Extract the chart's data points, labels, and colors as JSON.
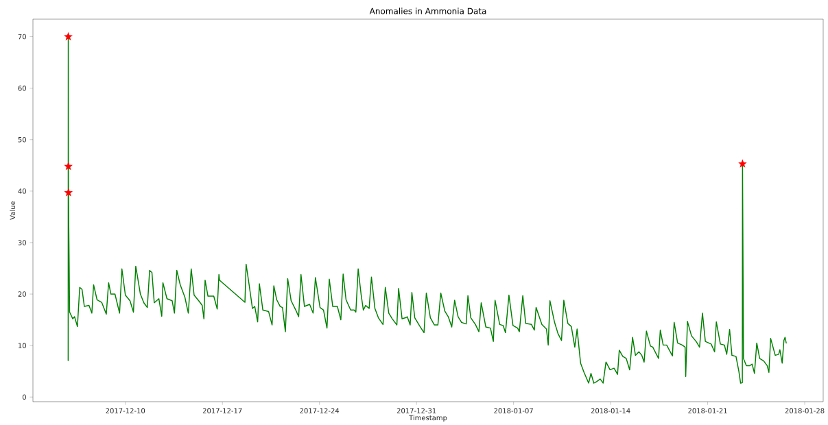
{
  "chart_data": {
    "type": "line",
    "title": "Anomalies in Ammonia Data",
    "xlabel": "Timestamp",
    "ylabel": "Value",
    "xlim": [
      "2017-12-03T08:00",
      "2018-01-29T08:00"
    ],
    "xticks": [
      "2017-12-10",
      "2017-12-17",
      "2017-12-24",
      "2017-12-31",
      "2018-01-07",
      "2018-01-14",
      "2018-01-21",
      "2018-01-28"
    ],
    "ylim": [
      -0.9,
      73.4
    ],
    "yticks": [
      0,
      10,
      20,
      30,
      40,
      50,
      60,
      70
    ],
    "series": [
      {
        "color": "#008000",
        "x": [
          "2017-12-05T21:00",
          "2017-12-05T21:10",
          "2017-12-05T21:20",
          "2017-12-05T21:30",
          "2017-12-05T23:30",
          "2017-12-06T05:00",
          "2017-12-06T08:00",
          "2017-12-06T13:00",
          "2017-12-06T17:00",
          "2017-12-06T21:00",
          "2017-12-07T01:00",
          "2017-12-07T09:00",
          "2017-12-07T14:00",
          "2017-12-07T17:00",
          "2017-12-07T23:00",
          "2017-12-08T07:00",
          "2017-12-08T15:00",
          "2017-12-08T19:00",
          "2017-12-08T23:00",
          "2017-12-09T06:00",
          "2017-12-09T14:00",
          "2017-12-09T18:00",
          "2017-12-10T00:00",
          "2017-12-10T08:00",
          "2017-12-10T14:00",
          "2017-12-10T18:00",
          "2017-12-11T02:00",
          "2017-12-11T08:00",
          "2017-12-11T14:00",
          "2017-12-11T18:00",
          "2017-12-11T22:00",
          "2017-12-12T02:00",
          "2017-12-12T10:00",
          "2017-12-12T15:00",
          "2017-12-12T17:00",
          "2017-12-13T00:00",
          "2017-12-13T09:00",
          "2017-12-13T13:00",
          "2017-12-13T17:00",
          "2017-12-13T23:00",
          "2017-12-14T07:00",
          "2017-12-14T13:00",
          "2017-12-14T18:00",
          "2017-12-14T23:00",
          "2017-12-15T07:00",
          "2017-12-15T13:00",
          "2017-12-15T16:00",
          "2017-12-15T18:00",
          "2017-12-15T23:00",
          "2017-12-16T09:00",
          "2017-12-16T15:00",
          "2017-12-16T18:00",
          "2017-12-16T19:00",
          "2017-12-18T15:00",
          "2017-12-18T17:00",
          "2017-12-18T22:00",
          "2017-12-19T04:00",
          "2017-12-19T08:00",
          "2017-12-19T13:00",
          "2017-12-19T16:00",
          "2017-12-19T22:00",
          "2017-12-20T08:00",
          "2017-12-20T14:00",
          "2017-12-20T17:00",
          "2017-12-20T22:00",
          "2017-12-21T04:00",
          "2017-12-21T08:00",
          "2017-12-21T13:00",
          "2017-12-21T17:00",
          "2017-12-21T23:00",
          "2017-12-22T07:00",
          "2017-12-22T12:00",
          "2017-12-22T16:00",
          "2017-12-22T22:00",
          "2017-12-23T07:00",
          "2017-12-23T13:00",
          "2017-12-23T17:00",
          "2017-12-24T01:00",
          "2017-12-24T07:00",
          "2017-12-24T13:00",
          "2017-12-24T17:00",
          "2017-12-24T23:00",
          "2017-12-25T07:00",
          "2017-12-25T13:00",
          "2017-12-25T17:00",
          "2017-12-25T22:00",
          "2017-12-26T06:00",
          "2017-12-26T12:00",
          "2017-12-26T15:00",
          "2017-12-26T19:00",
          "2017-12-27T00:00",
          "2017-12-27T04:00",
          "2017-12-27T08:00",
          "2017-12-27T14:00",
          "2017-12-27T18:00",
          "2017-12-28T00:00",
          "2017-12-28T06:00",
          "2017-12-28T14:00",
          "2017-12-28T18:00",
          "2017-12-29T00:00",
          "2017-12-29T06:00",
          "2017-12-29T14:00",
          "2017-12-29T17:00",
          "2017-12-29T23:00",
          "2017-12-30T05:00",
          "2017-12-30T08:00",
          "2017-12-30T13:00",
          "2017-12-30T16:00",
          "2017-12-30T21:00",
          "2017-12-31T05:00",
          "2017-12-31T13:00",
          "2017-12-31T17:00",
          "2018-01-01T00:00",
          "2018-01-01T07:00",
          "2018-01-01T13:00",
          "2018-01-01T18:00",
          "2018-01-02T01:00",
          "2018-01-02T07:00",
          "2018-01-02T13:00",
          "2018-01-02T18:00",
          "2018-01-03T00:00",
          "2018-01-03T06:00",
          "2018-01-03T14:00",
          "2018-01-03T17:00",
          "2018-01-03T22:00",
          "2018-01-04T06:00",
          "2018-01-04T12:00",
          "2018-01-04T16:00",
          "2018-01-05T00:00",
          "2018-01-05T08:00",
          "2018-01-05T13:00",
          "2018-01-05T16:00",
          "2018-01-06T00:00",
          "2018-01-06T06:00",
          "2018-01-06T10:00",
          "2018-01-06T16:00",
          "2018-01-06T23:00",
          "2018-01-07T07:00",
          "2018-01-07T10:00",
          "2018-01-07T16:00",
          "2018-01-07T21:00",
          "2018-01-08T07:00",
          "2018-01-08T12:00",
          "2018-01-08T15:00",
          "2018-01-09T01:00",
          "2018-01-09T09:00",
          "2018-01-09T12:00",
          "2018-01-09T15:00",
          "2018-01-09T23:00",
          "2018-01-10T05:00",
          "2018-01-10T11:00",
          "2018-01-10T15:00",
          "2018-01-10T22:00",
          "2018-01-11T04:00",
          "2018-01-11T10:00",
          "2018-01-11T14:00",
          "2018-01-11T20:00",
          "2018-01-12T02:00",
          "2018-01-12T10:00",
          "2018-01-12T14:00",
          "2018-01-12T19:00",
          "2018-01-13T00:00",
          "2018-01-13T06:00",
          "2018-01-13T11:00",
          "2018-01-13T16:00",
          "2018-01-13T23:00",
          "2018-01-14T06:00",
          "2018-01-14T12:00",
          "2018-01-14T15:00",
          "2018-01-14T21:00",
          "2018-01-15T03:00",
          "2018-01-15T09:00",
          "2018-01-15T14:00",
          "2018-01-15T19:00",
          "2018-01-16T01:00",
          "2018-01-16T06:00",
          "2018-01-16T10:00",
          "2018-01-16T14:00",
          "2018-01-16T21:00",
          "2018-01-17T01:00",
          "2018-01-17T05:00",
          "2018-01-17T11:00",
          "2018-01-17T14:00",
          "2018-01-17T19:00",
          "2018-01-18T01:00",
          "2018-01-18T11:00",
          "2018-01-18T14:00",
          "2018-01-18T20:00",
          "2018-01-19T04:00",
          "2018-01-19T09:00",
          "2018-01-19T10:00",
          "2018-01-19T13:00",
          "2018-01-19T20:00",
          "2018-01-20T04:00",
          "2018-01-20T10:00",
          "2018-01-20T15:00",
          "2018-01-20T20:00",
          "2018-01-21T06:00",
          "2018-01-21T12:00",
          "2018-01-21T15:00",
          "2018-01-21T22:00",
          "2018-01-22T05:00",
          "2018-01-22T09:00",
          "2018-01-22T14:00",
          "2018-01-22T18:00",
          "2018-01-23T01:00",
          "2018-01-23T06:00",
          "2018-01-23T09:00",
          "2018-01-23T12:00",
          "2018-01-23T12:20",
          "2018-01-23T14:00",
          "2018-01-23T19:00",
          "2018-01-24T01:00",
          "2018-01-24T05:00",
          "2018-01-24T09:00",
          "2018-01-24T13:00",
          "2018-01-24T18:00",
          "2018-01-25T01:00",
          "2018-01-25T07:00",
          "2018-01-25T10:00",
          "2018-01-25T13:00",
          "2018-01-25T21:00",
          "2018-01-26T03:00",
          "2018-01-26T05:00",
          "2018-01-26T09:00",
          "2018-01-26T12:00",
          "2018-01-26T14:00",
          "2018-01-26T16:00"
        ],
        "values": [
          7.1,
          70,
          44.8,
          39.7,
          16.5,
          15.2,
          15.6,
          13.7,
          21.3,
          20.9,
          17.6,
          17.8,
          16.3,
          21.8,
          18.9,
          18.4,
          16.1,
          22.2,
          20.0,
          20.0,
          16.3,
          24.9,
          19.8,
          18.7,
          16.5,
          25.4,
          20.0,
          18.3,
          17.4,
          24.6,
          24.2,
          18.3,
          19.1,
          15.7,
          22.2,
          19.1,
          18.7,
          16.3,
          24.6,
          21.8,
          19.4,
          16.3,
          24.9,
          19.8,
          18.7,
          17.8,
          15.2,
          22.7,
          19.6,
          19.6,
          17.1,
          23.8,
          22.7,
          18.4,
          25.8,
          22.0,
          17.2,
          17.6,
          14.6,
          22.0,
          16.9,
          16.6,
          14.0,
          21.6,
          18.9,
          17.6,
          17.4,
          12.7,
          23.0,
          18.7,
          16.9,
          15.6,
          23.8,
          17.6,
          18.0,
          16.3,
          23.2,
          17.4,
          16.9,
          13.4,
          22.9,
          17.6,
          17.6,
          15.0,
          23.9,
          18.9,
          16.9,
          16.9,
          16.5,
          24.9,
          20.0,
          16.9,
          17.8,
          17.2,
          23.3,
          17.2,
          15.4,
          14.1,
          21.3,
          16.3,
          15.2,
          14.0,
          21.1,
          15.2,
          15.4,
          15.6,
          14.0,
          20.3,
          15.4,
          13.9,
          12.5,
          20.2,
          15.4,
          14.0,
          14.0,
          20.2,
          16.7,
          15.6,
          13.6,
          18.8,
          15.6,
          14.5,
          14.2,
          19.7,
          15.4,
          14.1,
          12.7,
          18.3,
          13.6,
          13.4,
          10.8,
          18.8,
          14.1,
          13.9,
          12.5,
          19.8,
          13.9,
          13.4,
          12.7,
          19.7,
          14.3,
          14.1,
          13.0,
          17.4,
          14.1,
          13.2,
          10.1,
          18.7,
          14.5,
          12.3,
          11.0,
          18.8,
          14.3,
          13.7,
          9.7,
          13.2,
          6.6,
          4.8,
          2.7,
          4.6,
          2.7,
          3.0,
          3.5,
          2.7,
          6.8,
          5.3,
          5.6,
          4.4,
          9.1,
          7.9,
          7.5,
          5.3,
          11.6,
          8.1,
          8.8,
          8.1,
          6.8,
          12.8,
          9.9,
          9.7,
          8.8,
          7.5,
          13.0,
          10.1,
          10.1,
          8.0,
          14.5,
          10.5,
          10.1,
          9.7,
          4.0,
          14.7,
          11.9,
          10.8,
          9.7,
          16.3,
          10.8,
          10.3,
          8.8,
          14.6,
          10.3,
          10.1,
          8.3,
          13.1,
          8.1,
          7.9,
          5.0,
          2.7,
          2.8,
          45.3,
          7.5,
          6.1,
          6.1,
          6.4,
          4.6,
          10.5,
          7.5,
          7.0,
          6.1,
          4.8,
          11.4,
          8.1,
          8.3,
          9.2,
          6.6,
          11.0,
          11.6,
          10.5
        ]
      },
      {
        "type": "scatter",
        "color": "#ff0000",
        "marker": "star",
        "x": [
          "2017-12-05T21:10",
          "2017-12-05T21:20",
          "2017-12-05T21:30",
          "2018-01-23T12:20"
        ],
        "values": [
          70,
          44.8,
          39.7,
          45.3
        ]
      }
    ]
  }
}
